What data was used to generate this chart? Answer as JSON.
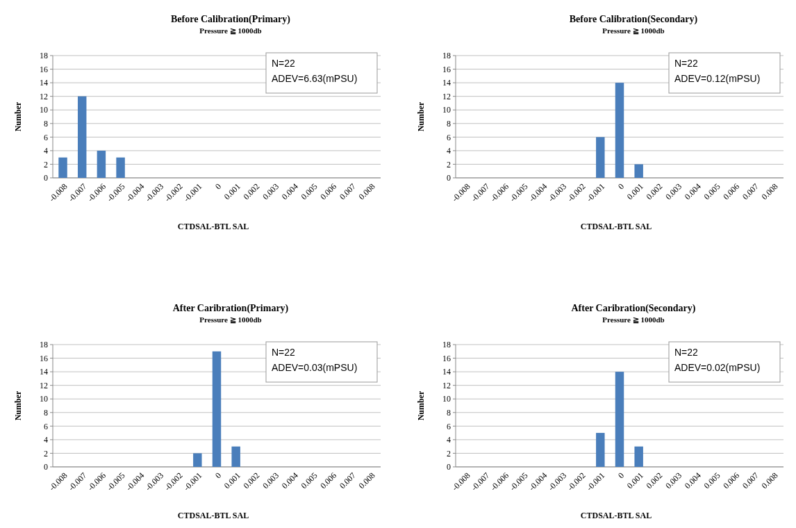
{
  "chart_data": [
    {
      "type": "bar",
      "title": "Before Calibration(Primary)",
      "subtitle": "Pressure ≧ 1000db",
      "xlabel": "CTDSAL-BTL SAL",
      "ylabel": "Number",
      "categories": [
        "-0.008",
        "-0.007",
        "-0.006",
        "-0.005",
        "-0.004",
        "-0.003",
        "-0.002",
        "-0.001",
        "0",
        "0.001",
        "0.002",
        "0.003",
        "0.004",
        "0.005",
        "0.006",
        "0.007",
        "0.008"
      ],
      "values": [
        3,
        12,
        4,
        3,
        0,
        0,
        0,
        0,
        0,
        0,
        0,
        0,
        0,
        0,
        0,
        0,
        0
      ],
      "color": "#4a7ebb",
      "ylim": [
        0,
        18
      ],
      "yticks": [
        0,
        2,
        4,
        6,
        8,
        10,
        12,
        14,
        16,
        18
      ],
      "grid": "y",
      "annotations": [
        "N=22",
        "ADEV=6.63(mPSU)"
      ]
    },
    {
      "type": "bar",
      "title": "Before Calibration(Secondary)",
      "subtitle": "Pressure ≧ 1000db",
      "xlabel": "CTDSAL-BTL SAL",
      "ylabel": "Number",
      "categories": [
        "-0.008",
        "-0.007",
        "-0.006",
        "-0.005",
        "-0.004",
        "-0.003",
        "-0.002",
        "-0.001",
        "0",
        "0.001",
        "0.002",
        "0.003",
        "0.004",
        "0.005",
        "0.006",
        "0.007",
        "0.008"
      ],
      "values": [
        0,
        0,
        0,
        0,
        0,
        0,
        0,
        6,
        14,
        2,
        0,
        0,
        0,
        0,
        0,
        0,
        0
      ],
      "color": "#4a7ebb",
      "ylim": [
        0,
        18
      ],
      "yticks": [
        0,
        2,
        4,
        6,
        8,
        10,
        12,
        14,
        16,
        18
      ],
      "grid": "y",
      "annotations": [
        "N=22",
        "ADEV=0.12(mPSU)"
      ]
    },
    {
      "type": "bar",
      "title": "After Caribration(Primary)",
      "subtitle": "Pressure ≧ 1000db",
      "xlabel": "CTDSAL-BTL SAL",
      "ylabel": "Number",
      "categories": [
        "-0.008",
        "-0.007",
        "-0.006",
        "-0.005",
        "-0.004",
        "-0.003",
        "-0.002",
        "-0.001",
        "0",
        "0.001",
        "0.002",
        "0.003",
        "0.004",
        "0.005",
        "0.006",
        "0.007",
        "0.008"
      ],
      "values": [
        0,
        0,
        0,
        0,
        0,
        0,
        0,
        2,
        17,
        3,
        0,
        0,
        0,
        0,
        0,
        0,
        0
      ],
      "color": "#4a7ebb",
      "ylim": [
        0,
        18
      ],
      "yticks": [
        0,
        2,
        4,
        6,
        8,
        10,
        12,
        14,
        16,
        18
      ],
      "grid": "y",
      "annotations": [
        "N=22",
        "ADEV=0.03(mPSU)"
      ]
    },
    {
      "type": "bar",
      "title": "After Caribration(Secondary)",
      "subtitle": "Pressure ≧ 1000db",
      "xlabel": "CTDSAL-BTL SAL",
      "ylabel": "Number",
      "categories": [
        "-0.008",
        "-0.007",
        "-0.006",
        "-0.005",
        "-0.004",
        "-0.003",
        "-0.002",
        "-0.001",
        "0",
        "0.001",
        "0.002",
        "0.003",
        "0.004",
        "0.005",
        "0.006",
        "0.007",
        "0.008"
      ],
      "values": [
        0,
        0,
        0,
        0,
        0,
        0,
        0,
        5,
        14,
        3,
        0,
        0,
        0,
        0,
        0,
        0,
        0
      ],
      "color": "#4a7ebb",
      "ylim": [
        0,
        18
      ],
      "yticks": [
        0,
        2,
        4,
        6,
        8,
        10,
        12,
        14,
        16,
        18
      ],
      "grid": "y",
      "annotations": [
        "N=22",
        "ADEV=0.02(mPSU)"
      ]
    }
  ]
}
